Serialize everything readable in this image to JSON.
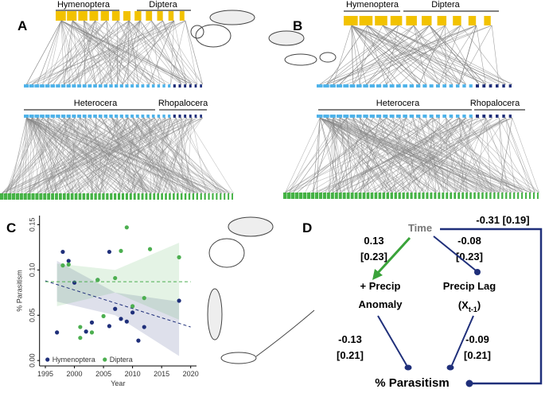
{
  "panels": {
    "A": {
      "letter": "A",
      "top_groups": [
        "Hymenoptera",
        "Diptera"
      ],
      "bottom_groups": [
        "Heterocera",
        "Rhopalocera"
      ]
    },
    "B": {
      "letter": "B",
      "top_groups": [
        "Hymenoptera",
        "Diptera"
      ],
      "bottom_groups": [
        "Heterocera",
        "Rhopalocera"
      ]
    },
    "C": {
      "letter": "C"
    },
    "D": {
      "letter": "D",
      "nodes": {
        "time": "Time",
        "anomaly": [
          "+ Precip",
          "Anomaly"
        ],
        "lag": {
          "name": "Precip Lag",
          "prefix": "(X",
          "subscript": "t-1",
          "suffix": ")"
        },
        "outcome": "% Parasitism"
      },
      "edges": {
        "time_anomaly": [
          "0.13",
          "[0.23]"
        ],
        "time_lag": [
          "-0.08",
          "[0.23]"
        ],
        "time_outcome": "-0.31 [0.19]",
        "anomaly_outcome": [
          "-0.13",
          "[0.21]"
        ],
        "lag_outcome": [
          "-0.09",
          "[0.21]"
        ]
      }
    }
  },
  "chart_data": {
    "type": "scatter",
    "x_label": "Year",
    "y_label": "% Parasitism",
    "xlim": [
      1994,
      2021
    ],
    "ylim": [
      -0.006,
      0.16
    ],
    "xticks": [
      1995,
      2000,
      2005,
      2010,
      2015,
      2020
    ],
    "yticks": [
      {
        "value": 0,
        "label": "0.00"
      },
      {
        "value": 0.05,
        "label": "0.05"
      },
      {
        "value": 0.1,
        "label": "0.10"
      },
      {
        "value": 0.15,
        "label": "0.15"
      }
    ],
    "legend": "bottom-left",
    "series": [
      {
        "name": "Hymenoptera",
        "color": "#1f2f7a",
        "x": [
          1997,
          1998,
          1999,
          2000,
          2002,
          2003,
          2004,
          2006,
          2006,
          2007,
          2008,
          2009,
          2010,
          2011,
          2012,
          2018
        ],
        "values": [
          0.031,
          0.12,
          0.11,
          0.086,
          0.032,
          0.042,
          0.089,
          0.038,
          0.12,
          0.057,
          0.046,
          0.043,
          0.053,
          0.022,
          0.037,
          0.066
        ],
        "fit": {
          "x": [
            1995,
            2020
          ],
          "values": [
            0.088,
            0.037
          ]
        },
        "ci": {
          "x": [
            1997,
            2007,
            2018
          ],
          "upper": [
            0.11,
            0.075,
            0.065
          ],
          "lower": [
            0.065,
            0.05,
            0.005
          ]
        }
      },
      {
        "name": "Diptera",
        "color": "#4caf50",
        "x": [
          1998,
          1999,
          2001,
          2001,
          2003,
          2004,
          2005,
          2007,
          2008,
          2009,
          2010,
          2012,
          2013,
          2018
        ],
        "values": [
          0.105,
          0.106,
          0.025,
          0.037,
          0.031,
          0.089,
          0.049,
          0.091,
          0.121,
          0.147,
          0.06,
          0.069,
          0.123,
          0.114
        ],
        "fit": {
          "x": [
            1995,
            2020
          ],
          "values": [
            0.087,
            0.087
          ]
        },
        "ci": {
          "x": [
            1997,
            2007,
            2018
          ],
          "upper": [
            0.107,
            0.1,
            0.13
          ],
          "lower": [
            0.06,
            0.075,
            0.045
          ]
        }
      }
    ]
  }
}
